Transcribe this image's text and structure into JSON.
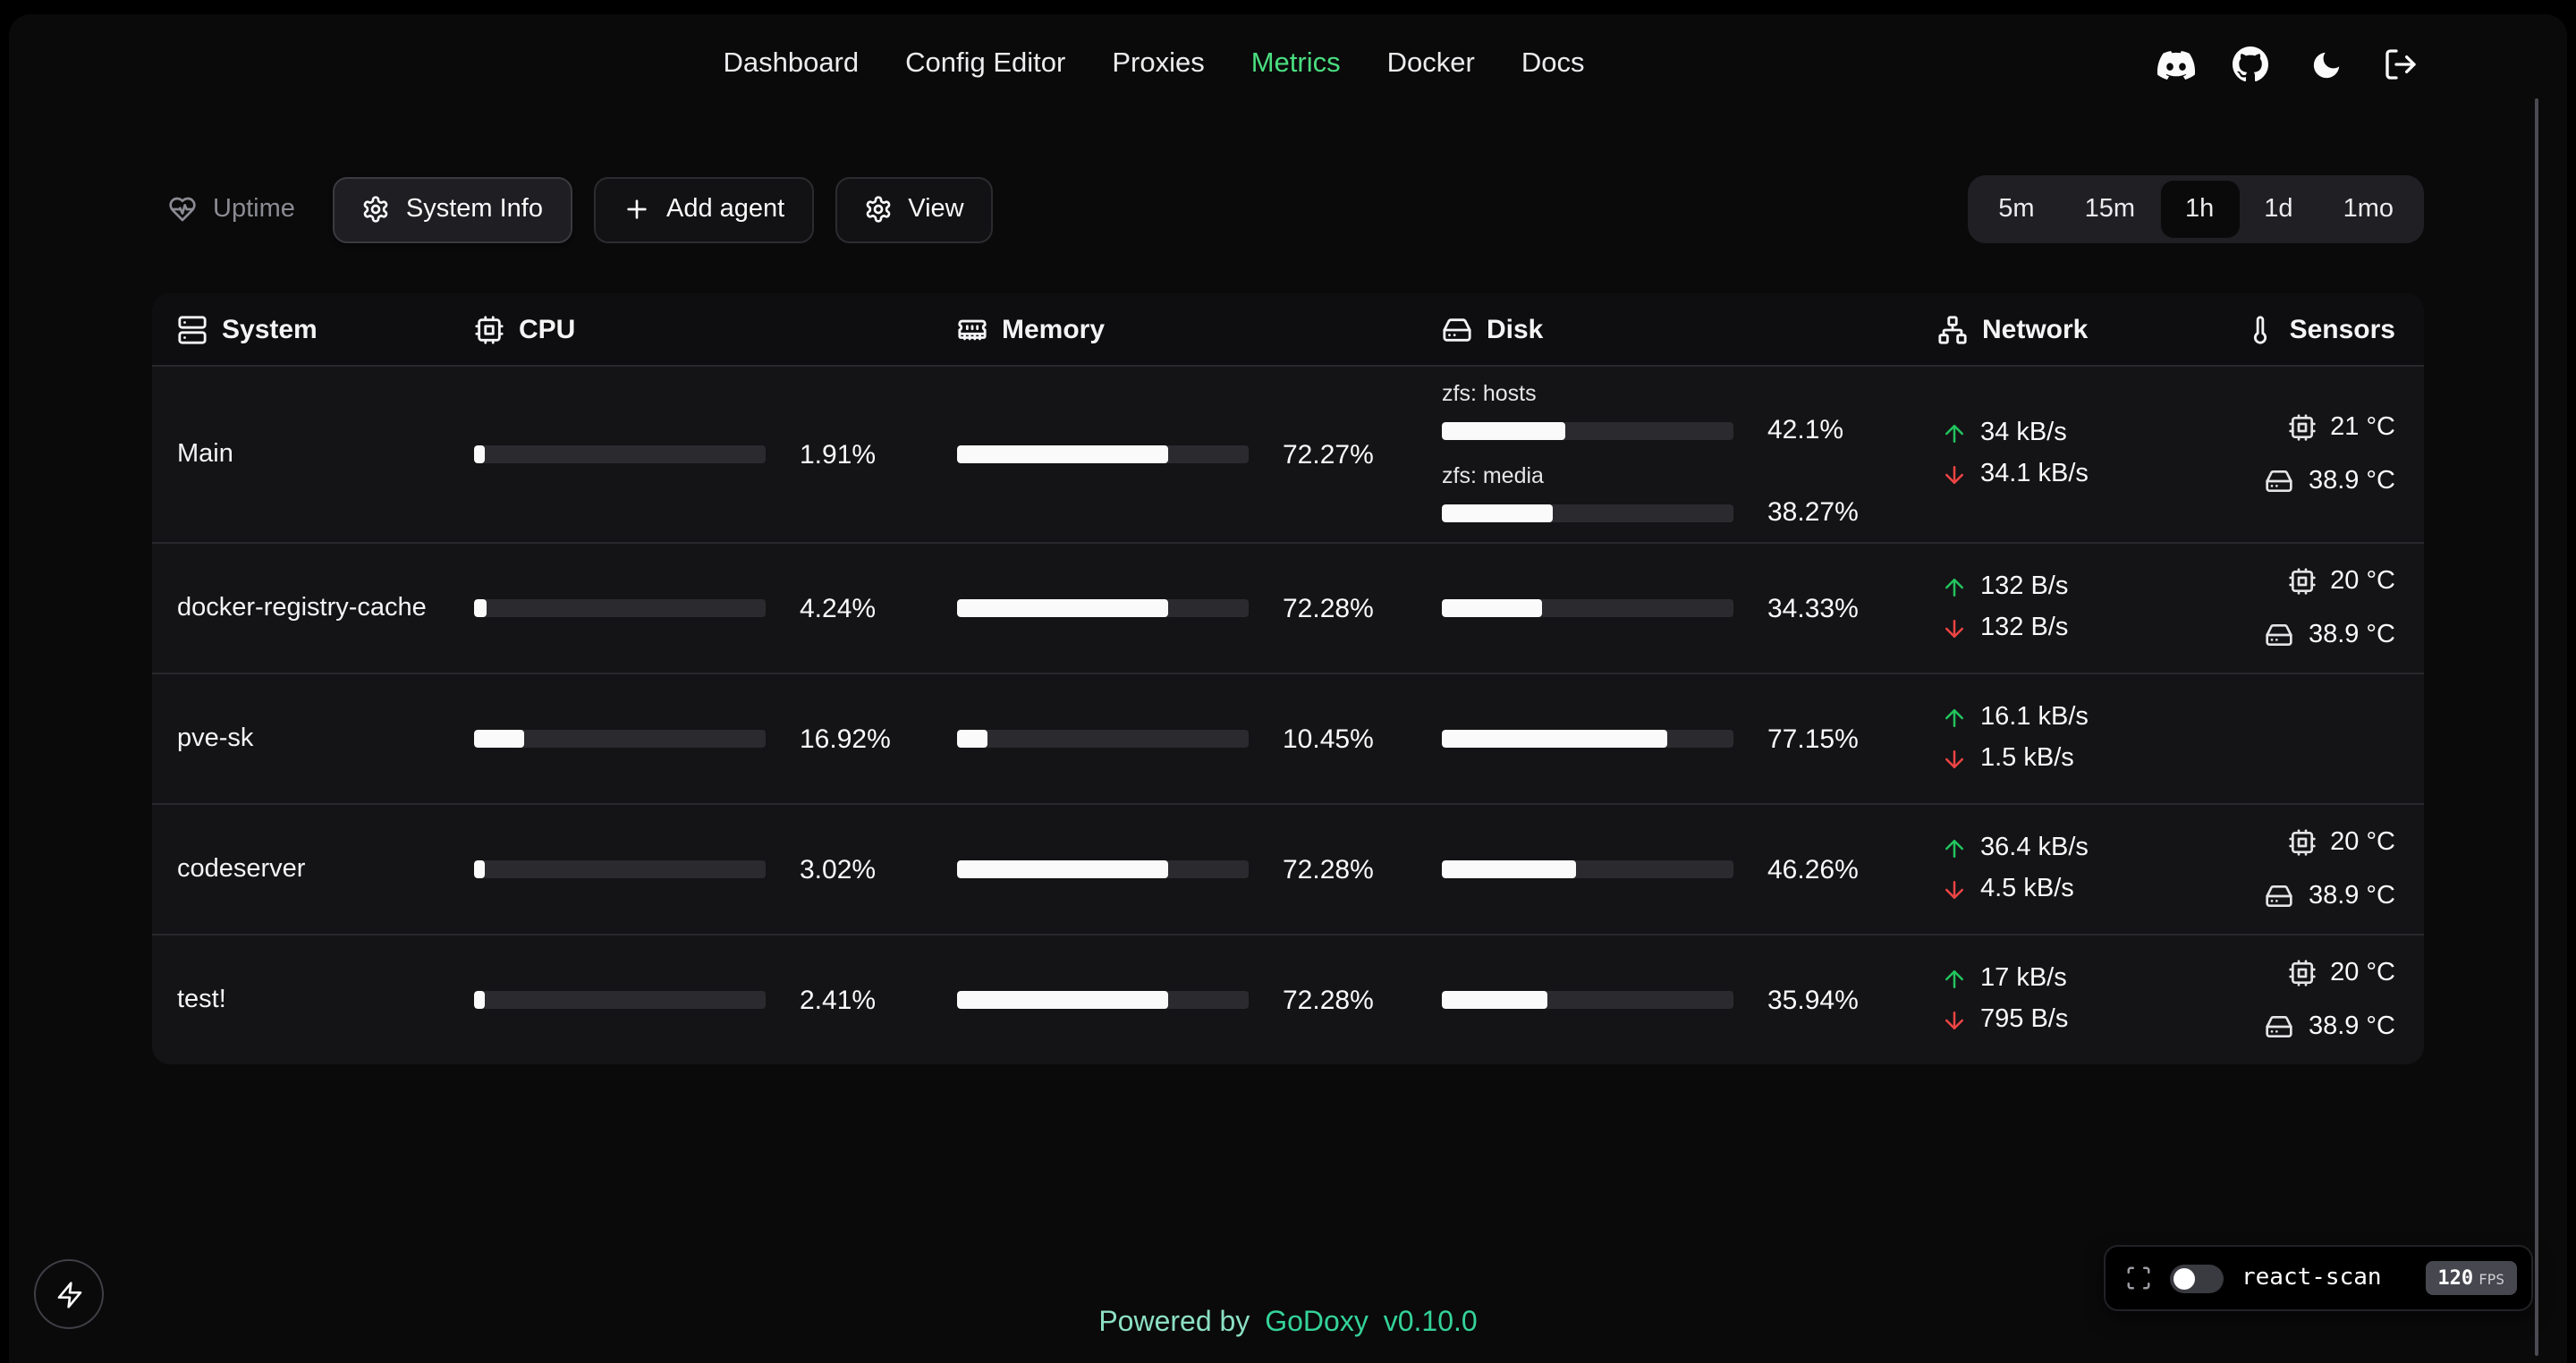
{
  "nav": {
    "items": [
      {
        "label": "Dashboard",
        "active": false
      },
      {
        "label": "Config Editor",
        "active": false
      },
      {
        "label": "Proxies",
        "active": false
      },
      {
        "label": "Metrics",
        "active": true
      },
      {
        "label": "Docker",
        "active": false
      },
      {
        "label": "Docs",
        "active": false
      }
    ],
    "icons": [
      "discord",
      "github",
      "theme-toggle-moon",
      "logout"
    ]
  },
  "toolbar": {
    "uptime_label": "Uptime",
    "system_info_label": "System Info",
    "add_agent_label": "Add agent",
    "view_label": "View",
    "time_ranges": [
      {
        "label": "5m",
        "selected": false
      },
      {
        "label": "15m",
        "selected": false
      },
      {
        "label": "1h",
        "selected": true
      },
      {
        "label": "1d",
        "selected": false
      },
      {
        "label": "1mo",
        "selected": false
      }
    ]
  },
  "table": {
    "columns": [
      {
        "label": "System",
        "icon": "server-icon"
      },
      {
        "label": "CPU",
        "icon": "cpu-icon"
      },
      {
        "label": "Memory",
        "icon": "memory-icon"
      },
      {
        "label": "Disk",
        "icon": "harddrive-icon"
      },
      {
        "label": "Network",
        "icon": "network-icon"
      },
      {
        "label": "Sensors",
        "icon": "thermometer-icon"
      }
    ],
    "rows": [
      {
        "system": "Main",
        "cpu": {
          "percent": "1.91%",
          "value": 1.91
        },
        "memory": {
          "percent": "72.27%",
          "value": 72.27
        },
        "disks": [
          {
            "label": "zfs: hosts",
            "percent": "42.1%",
            "value": 42.1
          },
          {
            "label": "zfs: media",
            "percent": "38.27%",
            "value": 38.27
          }
        ],
        "network": {
          "up": "34 kB/s",
          "down": "34.1 kB/s"
        },
        "sensors": [
          {
            "icon": "cpu-icon",
            "value": "21 °C"
          },
          {
            "icon": "harddrive-icon",
            "value": "38.9 °C"
          }
        ]
      },
      {
        "system": "docker-registry-cache",
        "cpu": {
          "percent": "4.24%",
          "value": 4.24
        },
        "memory": {
          "percent": "72.28%",
          "value": 72.28
        },
        "disks": [
          {
            "label": "",
            "percent": "34.33%",
            "value": 34.33
          }
        ],
        "network": {
          "up": "132 B/s",
          "down": "132 B/s"
        },
        "sensors": [
          {
            "icon": "cpu-icon",
            "value": "20 °C"
          },
          {
            "icon": "harddrive-icon",
            "value": "38.9 °C"
          }
        ]
      },
      {
        "system": "pve-sk",
        "cpu": {
          "percent": "16.92%",
          "value": 16.92
        },
        "memory": {
          "percent": "10.45%",
          "value": 10.45
        },
        "disks": [
          {
            "label": "",
            "percent": "77.15%",
            "value": 77.15
          }
        ],
        "network": {
          "up": "16.1 kB/s",
          "down": "1.5 kB/s"
        },
        "sensors": []
      },
      {
        "system": "codeserver",
        "cpu": {
          "percent": "3.02%",
          "value": 3.02
        },
        "memory": {
          "percent": "72.28%",
          "value": 72.28
        },
        "disks": [
          {
            "label": "",
            "percent": "46.26%",
            "value": 46.26
          }
        ],
        "network": {
          "up": "36.4 kB/s",
          "down": "4.5 kB/s"
        },
        "sensors": [
          {
            "icon": "cpu-icon",
            "value": "20 °C"
          },
          {
            "icon": "harddrive-icon",
            "value": "38.9 °C"
          }
        ]
      },
      {
        "system": "test!",
        "cpu": {
          "percent": "2.41%",
          "value": 2.41
        },
        "memory": {
          "percent": "72.28%",
          "value": 72.28
        },
        "disks": [
          {
            "label": "",
            "percent": "35.94%",
            "value": 35.94
          }
        ],
        "network": {
          "up": "17 kB/s",
          "down": "795 B/s"
        },
        "sensors": [
          {
            "icon": "cpu-icon",
            "value": "20 °C"
          },
          {
            "icon": "harddrive-icon",
            "value": "38.9 °C"
          }
        ]
      }
    ]
  },
  "footer": {
    "powered_by": "Powered by",
    "brand": "GoDoxy",
    "version": "v0.10.0"
  },
  "widgets": {
    "react_scan": {
      "label": "react-scan",
      "fps": "120",
      "fps_unit": "FPS",
      "toggle_on": false
    }
  },
  "colors": {
    "accent_green": "#4ade80",
    "upload_green": "#22c55e",
    "download_red": "#ef4444",
    "brand_teal": "#34d399"
  }
}
